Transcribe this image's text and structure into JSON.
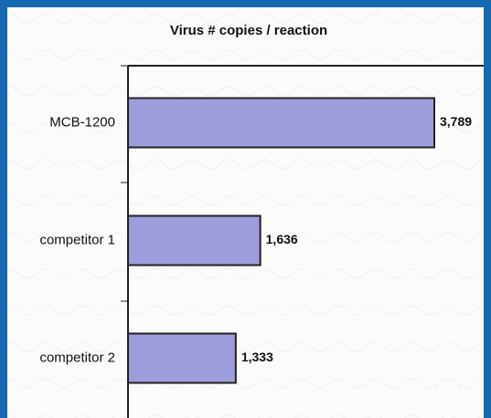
{
  "chart_data": {
    "type": "bar",
    "orientation": "horizontal",
    "title": "Virus # copies / reaction",
    "categories": [
      "MCB-1200",
      "competitor 1",
      "competitor 2"
    ],
    "values": [
      3789,
      1636,
      1333
    ],
    "value_labels": [
      "3,789",
      "1,636",
      "1,333"
    ],
    "color": "#9d9ddc"
  }
}
